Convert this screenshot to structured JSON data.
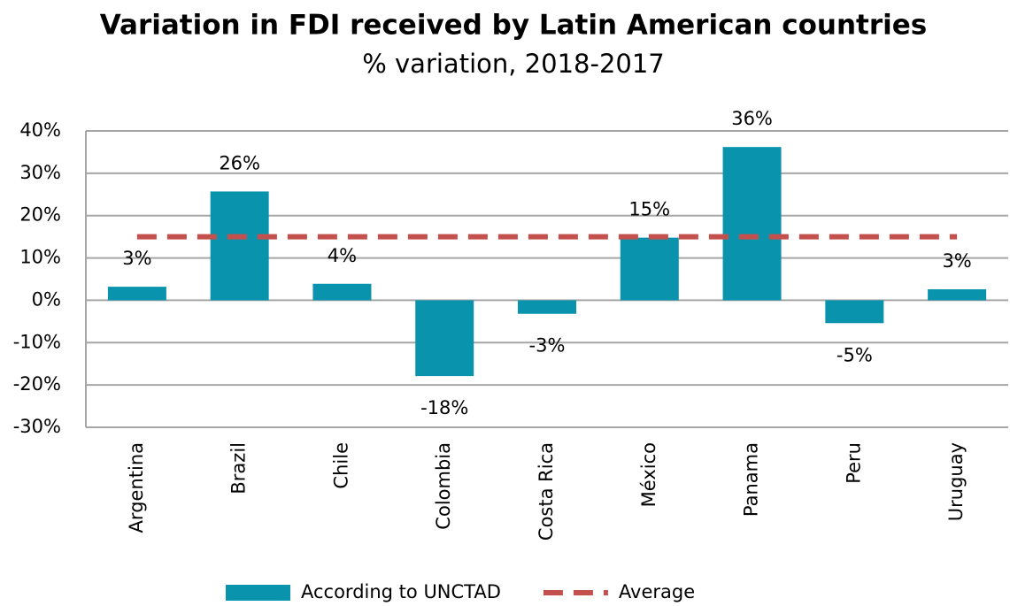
{
  "chart_data": {
    "type": "bar",
    "title": "Variation in FDI received by Latin American countries",
    "subtitle": "% variation, 2018-2017",
    "categories": [
      "Argentina",
      "Brazil",
      "Chile",
      "Colombia",
      "Costa Rica",
      "México",
      "Panama",
      "Peru",
      "Uruguay"
    ],
    "series": [
      {
        "name": "According to UNCTAD",
        "type": "bar",
        "color": "#0a93ad",
        "values": [
          3.2,
          25.7,
          3.9,
          -17.9,
          -3.2,
          14.8,
          36.2,
          -5.4,
          2.6
        ],
        "value_labels": [
          "3%",
          "26%",
          "4%",
          "-18%",
          "-3%",
          "15%",
          "36%",
          "-5%",
          "3%"
        ]
      },
      {
        "name": "Average",
        "type": "line",
        "color": "#c4504e",
        "dashed": true,
        "values": [
          15,
          15,
          15,
          15,
          15,
          15,
          15,
          15,
          15
        ]
      }
    ],
    "ylim": [
      -30,
      40
    ],
    "yticks": [
      {
        "value": -30,
        "label": "-30%"
      },
      {
        "value": -20,
        "label": "-20%"
      },
      {
        "value": -10,
        "label": "-10%"
      },
      {
        "value": 0,
        "label": "0%"
      },
      {
        "value": 10,
        "label": "10%"
      },
      {
        "value": 20,
        "label": "20%"
      },
      {
        "value": 30,
        "label": "30%"
      },
      {
        "value": 40,
        "label": "40%"
      }
    ],
    "grid": true,
    "legend": "bottom"
  }
}
